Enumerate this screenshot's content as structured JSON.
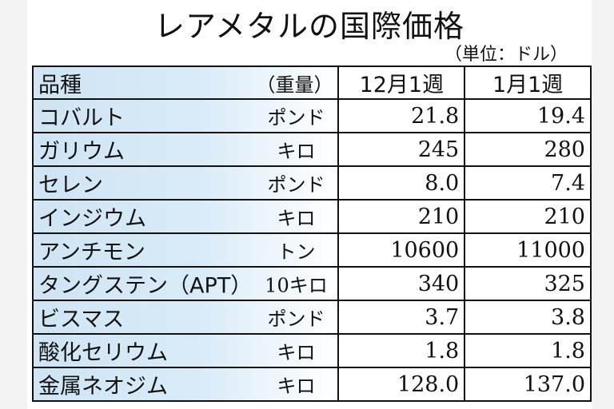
{
  "chart_data": {
    "type": "table",
    "title": "レアメタルの国際価格",
    "subtitle": "（単位：ドル）",
    "columns": [
      "品種",
      "（重量）",
      "12月1週",
      "1月1週"
    ],
    "rows": [
      {
        "name": "コバルト",
        "unit": "ポンド",
        "dec": "21.8",
        "jan": "19.4"
      },
      {
        "name": "ガリウム",
        "unit": "キロ",
        "dec": "245",
        "jan": "280"
      },
      {
        "name": "セレン",
        "unit": "ポンド",
        "dec": "8.0",
        "jan": "7.4"
      },
      {
        "name": "インジウム",
        "unit": "キロ",
        "dec": "210",
        "jan": "210"
      },
      {
        "name": "アンチモン",
        "unit": "トン",
        "dec": "10600",
        "jan": "11000"
      },
      {
        "name": "タングステン（APT）",
        "unit": "10キロ",
        "dec": "340",
        "jan": "325"
      },
      {
        "name": "ビスマス",
        "unit": "ポンド",
        "dec": "3.7",
        "jan": "3.8"
      },
      {
        "name": "酸化セリウム",
        "unit": "キロ",
        "dec": "1.8",
        "jan": "1.8"
      },
      {
        "name": "金属ネオジム",
        "unit": "キロ",
        "dec": "128.0",
        "jan": "137.0"
      }
    ]
  },
  "colors": {
    "header_fill": "#cfe4f4",
    "border": "#111111"
  }
}
